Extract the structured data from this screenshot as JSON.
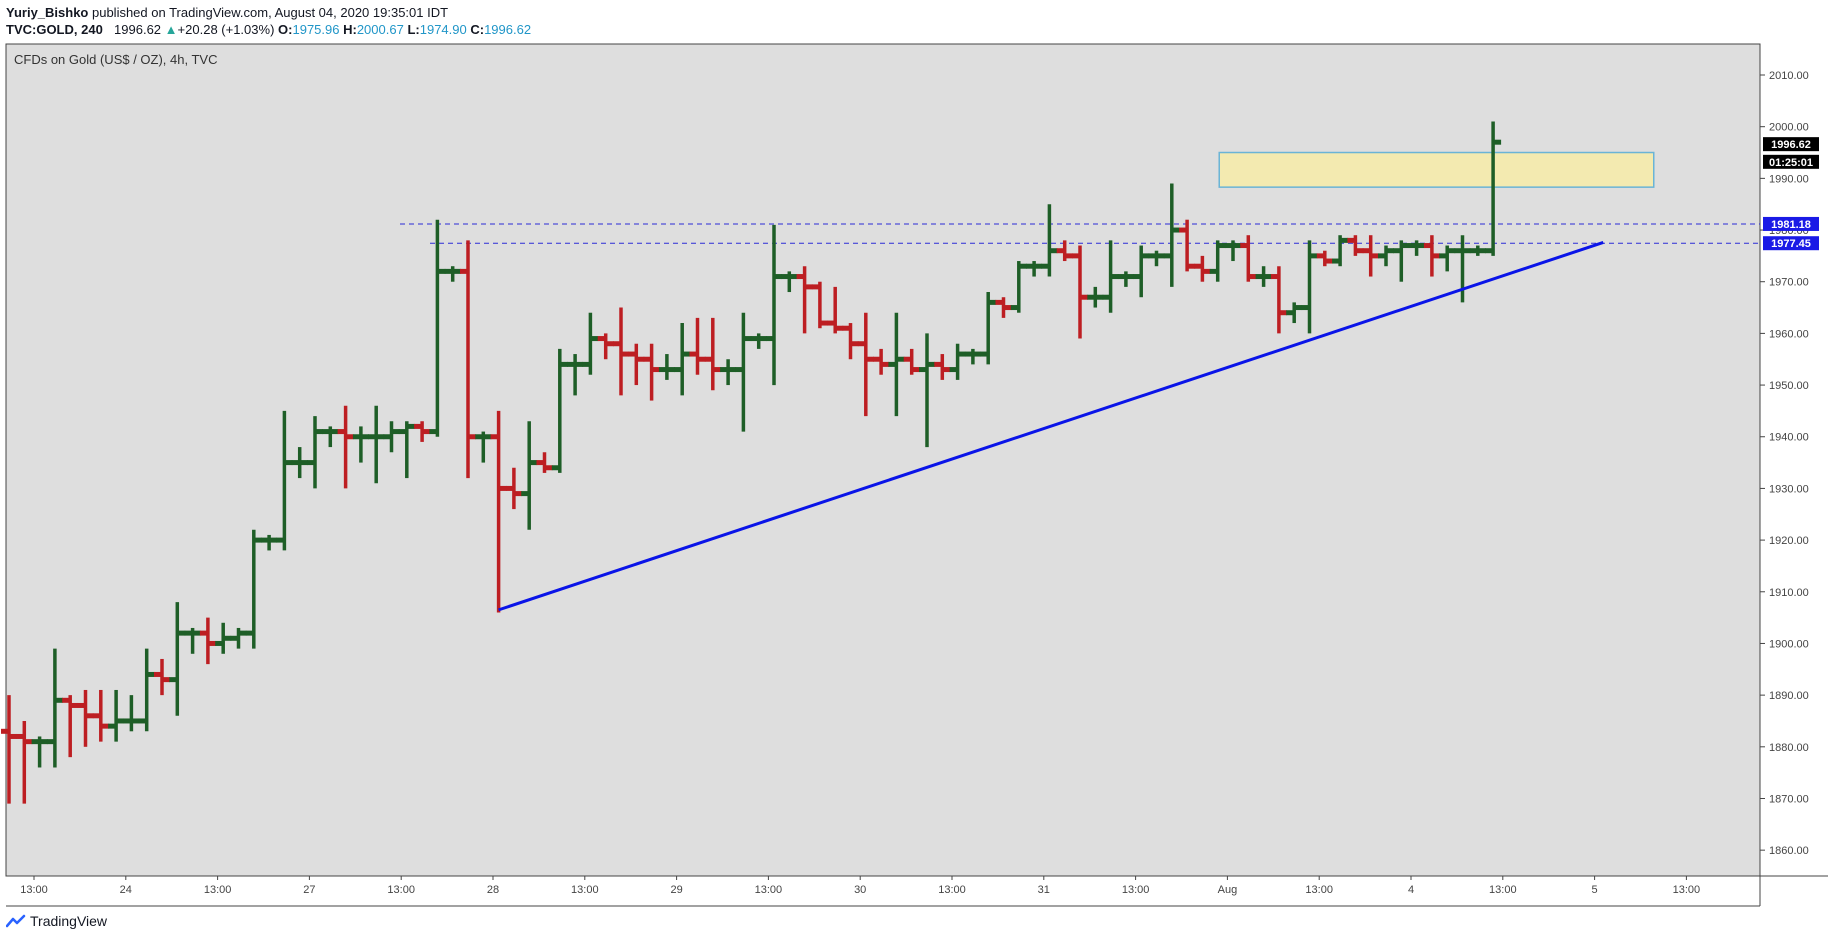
{
  "header": {
    "author": "Yuriy_Bishko",
    "published_text": " published on TradingView.com, August 04, 2020 19:35:01 IDT",
    "symbol": "TVC:GOLD, 240",
    "last": "1996.62",
    "change_arrow": "▲",
    "change": "+20.28 (+1.03%)",
    "open_label": "O:",
    "open": "1975.96",
    "high_label": "H:",
    "high": "2000.67",
    "low_label": "L:",
    "low": "1974.90",
    "close_label": "C:",
    "close": "1996.62"
  },
  "footer": {
    "brand": "TradingView"
  },
  "colors": {
    "bull": "#1e5e27",
    "bear": "#bd1e22",
    "plot_bg": "#dedede",
    "trendline": "#0a14e8",
    "hline": "#2b2bd6",
    "value_cyan": "#2196c8",
    "arrow_green": "#26a69a"
  },
  "chart_data": {
    "type": "ohlc",
    "title": "CFDs on Gold (US$ / OZ), 4h, TVC",
    "y_axis": {
      "min": 1855,
      "max": 2016,
      "ticks": [
        1860,
        1870,
        1880,
        1890,
        1900,
        1910,
        1920,
        1930,
        1940,
        1950,
        1960,
        1970,
        1980,
        1990,
        2000,
        2010
      ]
    },
    "x_axis_labels": [
      "13:00",
      "24",
      "13:00",
      "27",
      "13:00",
      "28",
      "13:00",
      "29",
      "13:00",
      "30",
      "13:00",
      "31",
      "13:00",
      "Aug",
      "13:00",
      "4",
      "13:00",
      "5",
      "13:00"
    ],
    "bars": [
      {
        "o": 1883,
        "h": 1890,
        "l": 1869,
        "c": 1882
      },
      {
        "o": 1882,
        "h": 1885,
        "l": 1869,
        "c": 1881
      },
      {
        "o": 1881,
        "h": 1882,
        "l": 1876,
        "c": 1881
      },
      {
        "o": 1881,
        "h": 1899,
        "l": 1876,
        "c": 1889
      },
      {
        "o": 1889,
        "h": 1890,
        "l": 1878,
        "c": 1888
      },
      {
        "o": 1888,
        "h": 1891,
        "l": 1880,
        "c": 1886
      },
      {
        "o": 1886,
        "h": 1891,
        "l": 1881,
        "c": 1884
      },
      {
        "o": 1884,
        "h": 1891,
        "l": 1881,
        "c": 1885
      },
      {
        "o": 1885,
        "h": 1890,
        "l": 1883,
        "c": 1885
      },
      {
        "o": 1885,
        "h": 1899,
        "l": 1883,
        "c": 1894
      },
      {
        "o": 1894,
        "h": 1897,
        "l": 1890,
        "c": 1893
      },
      {
        "o": 1893,
        "h": 1908,
        "l": 1886,
        "c": 1902
      },
      {
        "o": 1902,
        "h": 1903,
        "l": 1898,
        "c": 1902
      },
      {
        "o": 1902,
        "h": 1905,
        "l": 1896,
        "c": 1900
      },
      {
        "o": 1900,
        "h": 1904,
        "l": 1898,
        "c": 1901
      },
      {
        "o": 1901,
        "h": 1903,
        "l": 1899,
        "c": 1902
      },
      {
        "o": 1902,
        "h": 1922,
        "l": 1899,
        "c": 1920
      },
      {
        "o": 1920,
        "h": 1921,
        "l": 1918,
        "c": 1920
      },
      {
        "o": 1920,
        "h": 1945,
        "l": 1918,
        "c": 1935
      },
      {
        "o": 1935,
        "h": 1938,
        "l": 1932,
        "c": 1935
      },
      {
        "o": 1935,
        "h": 1944,
        "l": 1930,
        "c": 1941
      },
      {
        "o": 1941,
        "h": 1942,
        "l": 1938,
        "c": 1941
      },
      {
        "o": 1941,
        "h": 1946,
        "l": 1930,
        "c": 1940
      },
      {
        "o": 1940,
        "h": 1942,
        "l": 1935,
        "c": 1940
      },
      {
        "o": 1940,
        "h": 1946,
        "l": 1931,
        "c": 1940
      },
      {
        "o": 1940,
        "h": 1943,
        "l": 1937,
        "c": 1941
      },
      {
        "o": 1941,
        "h": 1943,
        "l": 1932,
        "c": 1942
      },
      {
        "o": 1942,
        "h": 1943,
        "l": 1939,
        "c": 1941
      },
      {
        "o": 1941,
        "h": 1982,
        "l": 1940,
        "c": 1972
      },
      {
        "o": 1972,
        "h": 1973,
        "l": 1970,
        "c": 1972
      },
      {
        "o": 1972,
        "h": 1978,
        "l": 1932,
        "c": 1940
      },
      {
        "o": 1940,
        "h": 1941,
        "l": 1935,
        "c": 1940
      },
      {
        "o": 1940,
        "h": 1945,
        "l": 1906,
        "c": 1930
      },
      {
        "o": 1930,
        "h": 1934,
        "l": 1926,
        "c": 1929
      },
      {
        "o": 1929,
        "h": 1943,
        "l": 1922,
        "c": 1935
      },
      {
        "o": 1935,
        "h": 1937,
        "l": 1933,
        "c": 1934
      },
      {
        "o": 1934,
        "h": 1957,
        "l": 1933,
        "c": 1954
      },
      {
        "o": 1954,
        "h": 1956,
        "l": 1948,
        "c": 1954
      },
      {
        "o": 1954,
        "h": 1964,
        "l": 1952,
        "c": 1959
      },
      {
        "o": 1959,
        "h": 1960,
        "l": 1955,
        "c": 1958
      },
      {
        "o": 1958,
        "h": 1965,
        "l": 1948,
        "c": 1956
      },
      {
        "o": 1956,
        "h": 1958,
        "l": 1950,
        "c": 1955
      },
      {
        "o": 1955,
        "h": 1958,
        "l": 1947,
        "c": 1953
      },
      {
        "o": 1953,
        "h": 1956,
        "l": 1951,
        "c": 1953
      },
      {
        "o": 1953,
        "h": 1962,
        "l": 1948,
        "c": 1956
      },
      {
        "o": 1956,
        "h": 1963,
        "l": 1952,
        "c": 1955
      },
      {
        "o": 1955,
        "h": 1963,
        "l": 1949,
        "c": 1953
      },
      {
        "o": 1953,
        "h": 1955,
        "l": 1950,
        "c": 1953
      },
      {
        "o": 1953,
        "h": 1964,
        "l": 1941,
        "c": 1959
      },
      {
        "o": 1959,
        "h": 1960,
        "l": 1957,
        "c": 1959
      },
      {
        "o": 1959,
        "h": 1981,
        "l": 1950,
        "c": 1971
      },
      {
        "o": 1971,
        "h": 1972,
        "l": 1968,
        "c": 1971
      },
      {
        "o": 1971,
        "h": 1973,
        "l": 1960,
        "c": 1969
      },
      {
        "o": 1969,
        "h": 1970,
        "l": 1961,
        "c": 1962
      },
      {
        "o": 1962,
        "h": 1969,
        "l": 1960,
        "c": 1961
      },
      {
        "o": 1961,
        "h": 1962,
        "l": 1955,
        "c": 1958
      },
      {
        "o": 1958,
        "h": 1964,
        "l": 1944,
        "c": 1955
      },
      {
        "o": 1955,
        "h": 1957,
        "l": 1952,
        "c": 1954
      },
      {
        "o": 1954,
        "h": 1964,
        "l": 1944,
        "c": 1955
      },
      {
        "o": 1955,
        "h": 1957,
        "l": 1952,
        "c": 1953
      },
      {
        "o": 1953,
        "h": 1960,
        "l": 1938,
        "c": 1954
      },
      {
        "o": 1954,
        "h": 1956,
        "l": 1951,
        "c": 1953
      },
      {
        "o": 1953,
        "h": 1958,
        "l": 1951,
        "c": 1956
      },
      {
        "o": 1956,
        "h": 1957,
        "l": 1954,
        "c": 1956
      },
      {
        "o": 1956,
        "h": 1968,
        "l": 1954,
        "c": 1966
      },
      {
        "o": 1966,
        "h": 1967,
        "l": 1963,
        "c": 1965
      },
      {
        "o": 1965,
        "h": 1974,
        "l": 1964,
        "c": 1973
      },
      {
        "o": 1973,
        "h": 1974,
        "l": 1971,
        "c": 1973
      },
      {
        "o": 1973,
        "h": 1985,
        "l": 1971,
        "c": 1976
      },
      {
        "o": 1976,
        "h": 1978,
        "l": 1974,
        "c": 1975
      },
      {
        "o": 1975,
        "h": 1977,
        "l": 1959,
        "c": 1967
      },
      {
        "o": 1967,
        "h": 1969,
        "l": 1965,
        "c": 1967
      },
      {
        "o": 1967,
        "h": 1978,
        "l": 1964,
        "c": 1971
      },
      {
        "o": 1971,
        "h": 1972,
        "l": 1969,
        "c": 1971
      },
      {
        "o": 1971,
        "h": 1977,
        "l": 1967,
        "c": 1975
      },
      {
        "o": 1975,
        "h": 1976,
        "l": 1973,
        "c": 1975
      },
      {
        "o": 1975,
        "h": 1989,
        "l": 1969,
        "c": 1980
      },
      {
        "o": 1980,
        "h": 1982,
        "l": 1972,
        "c": 1973
      },
      {
        "o": 1973,
        "h": 1975,
        "l": 1970,
        "c": 1972
      },
      {
        "o": 1972,
        "h": 1978,
        "l": 1970,
        "c": 1977
      },
      {
        "o": 1977,
        "h": 1978,
        "l": 1974,
        "c": 1977
      },
      {
        "o": 1977,
        "h": 1979,
        "l": 1970,
        "c": 1971
      },
      {
        "o": 1971,
        "h": 1973,
        "l": 1969,
        "c": 1971
      },
      {
        "o": 1971,
        "h": 1973,
        "l": 1960,
        "c": 1964
      },
      {
        "o": 1964,
        "h": 1966,
        "l": 1962,
        "c": 1965
      },
      {
        "o": 1965,
        "h": 1978,
        "l": 1960,
        "c": 1975
      },
      {
        "o": 1975,
        "h": 1976,
        "l": 1973,
        "c": 1974
      },
      {
        "o": 1974,
        "h": 1979,
        "l": 1973,
        "c": 1978
      },
      {
        "o": 1978,
        "h": 1979,
        "l": 1975,
        "c": 1976
      },
      {
        "o": 1976,
        "h": 1979,
        "l": 1971,
        "c": 1975
      },
      {
        "o": 1975,
        "h": 1977,
        "l": 1973,
        "c": 1976
      },
      {
        "o": 1976,
        "h": 1978,
        "l": 1970,
        "c": 1977
      },
      {
        "o": 1977,
        "h": 1978,
        "l": 1975,
        "c": 1977
      },
      {
        "o": 1977,
        "h": 1979,
        "l": 1971,
        "c": 1975
      },
      {
        "o": 1975,
        "h": 1977,
        "l": 1972,
        "c": 1976
      },
      {
        "o": 1976,
        "h": 1979,
        "l": 1966,
        "c": 1976
      },
      {
        "o": 1976,
        "h": 1977,
        "l": 1975,
        "c": 1976
      },
      {
        "o": 1976,
        "h": 2001,
        "l": 1975,
        "c": 1997
      }
    ],
    "horizontal_levels": [
      1981.18,
      1977.45
    ],
    "price_labels": [
      {
        "text": "1996.62",
        "value": 1996.62,
        "bg": "#000000"
      },
      {
        "text": "01:25:01",
        "value": 1993.2,
        "bg": "#000000"
      },
      {
        "text": "1981.18",
        "value": 1981.18,
        "bg": "#1a1ae6"
      },
      {
        "text": "1977.45",
        "value": 1977.45,
        "bg": "#1a1ae6"
      }
    ],
    "trendline": {
      "from": {
        "bar": 32,
        "price": 1906.5
      },
      "to": {
        "bar": 104.2,
        "price": 1977.6
      }
    },
    "zone": {
      "from_bar": 79.1,
      "to_bar": 107.5,
      "top": 1995,
      "bottom": 1988.3
    }
  }
}
